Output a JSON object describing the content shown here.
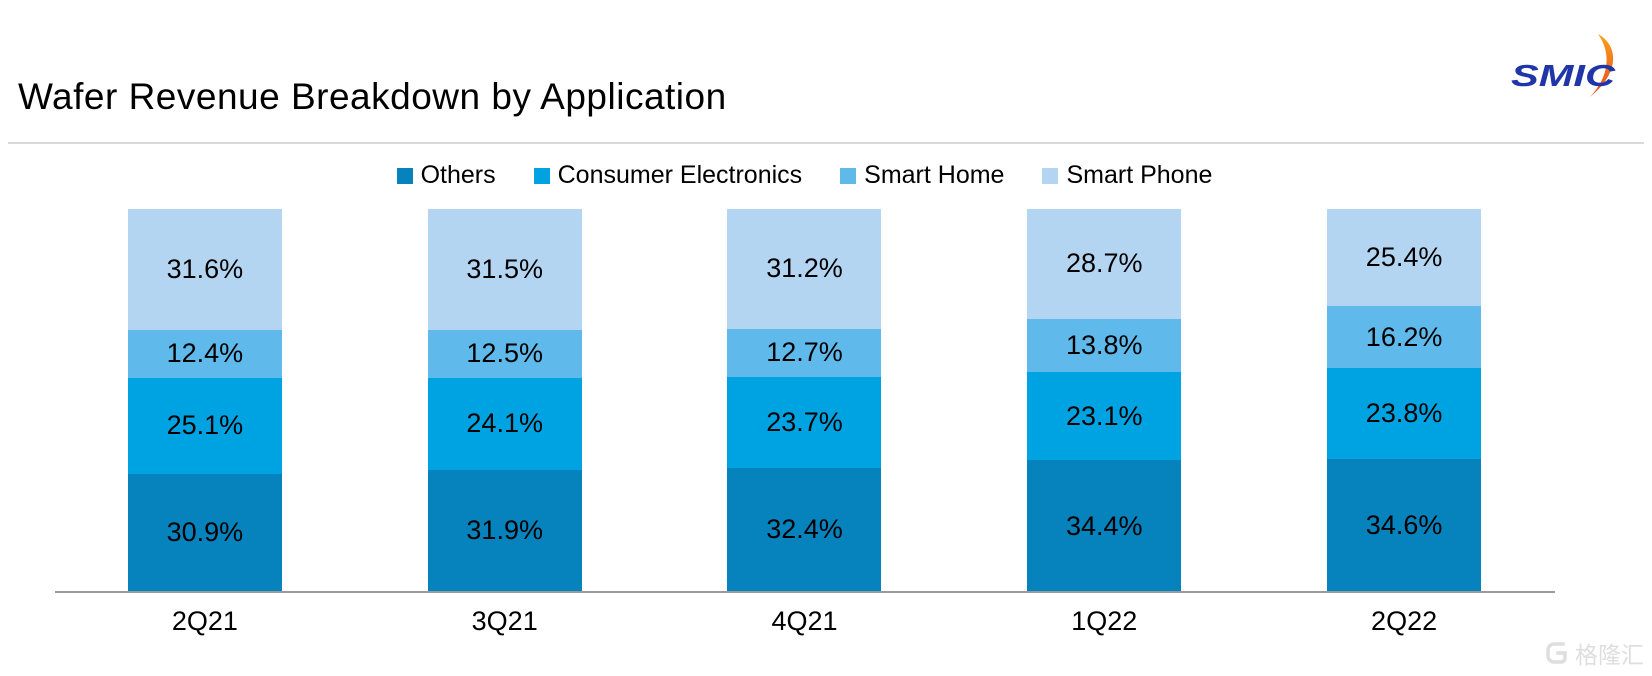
{
  "page": {
    "logo_text": "SMIC",
    "watermark_text": "格隆汇"
  },
  "colors": {
    "logo_blue": "#1F35A8",
    "logo_arc_top": "#F9A01B",
    "logo_arc_bottom": "#E8491D",
    "divider": "#D9D9D9",
    "axis_line": "#9A9A9A",
    "watermark": "#DEDEDE"
  },
  "chart_data": {
    "type": "bar",
    "stacked": true,
    "percent_stacked": true,
    "title": "Wafer Revenue Breakdown by Application",
    "unit": "%",
    "categories": [
      "2Q21",
      "3Q21",
      "4Q21",
      "1Q22",
      "2Q22"
    ],
    "series": [
      {
        "name": "Others",
        "color": "#0682BC",
        "values": [
          30.9,
          31.9,
          32.4,
          34.4,
          34.6
        ]
      },
      {
        "name": "Consumer Electronics",
        "color": "#00A3E2",
        "values": [
          25.1,
          24.1,
          23.7,
          23.1,
          23.8
        ]
      },
      {
        "name": "Smart Home",
        "color": "#5FB9EB",
        "values": [
          12.4,
          12.5,
          12.7,
          13.8,
          16.2
        ]
      },
      {
        "name": "Smart Phone",
        "color": "#B4D5F2",
        "values": [
          31.6,
          31.5,
          31.2,
          28.7,
          25.4
        ]
      }
    ],
    "stack_order_bottom_to_top": [
      "Others",
      "Consumer Electronics",
      "Smart Home",
      "Smart Phone"
    ],
    "legend_position": "top",
    "value_labels": "inside-center, one decimal with % sign",
    "ylim": [
      0,
      100
    ],
    "grid": false,
    "y_axis_visible": false
  }
}
